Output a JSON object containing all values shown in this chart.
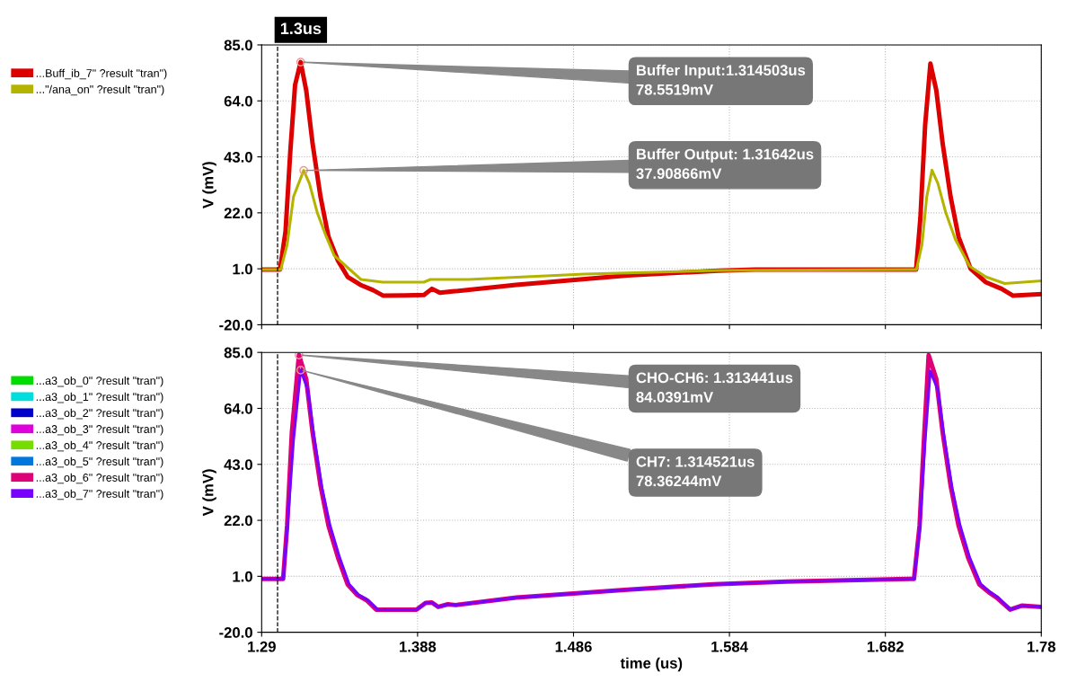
{
  "chart_data": [
    {
      "type": "line",
      "ylabel": "V (mV)",
      "xlim": [
        1.29,
        1.78
      ],
      "ylim": [
        -20.0,
        85.0
      ],
      "xticks": [
        1.29,
        1.388,
        1.486,
        1.584,
        1.682,
        1.78
      ],
      "yticks": [
        {
          "value": -20,
          "label": "-20.0"
        },
        {
          "value": 1,
          "label": "1.0"
        },
        {
          "value": 22,
          "label": "22.0"
        },
        {
          "value": 43,
          "label": "43.0"
        },
        {
          "value": 64,
          "label": "64.0"
        },
        {
          "value": 85,
          "label": "85.0"
        }
      ],
      "tick_labels": "y",
      "grid": true,
      "legend": "left",
      "marker": "none",
      "line_style": "solid",
      "ref_lines": [
        {
          "axis": "x",
          "value": 1.3,
          "label": "1.3us",
          "color": "#000000",
          "line_style": "dashed"
        }
      ],
      "annotations": [
        {
          "text": "Buffer Input:1.314503us\n78.5519mV",
          "x": 1.314503,
          "y": 78.5519
        },
        {
          "text": "Buffer Output: 1.31642us\n37.90866mV",
          "x": 1.31642,
          "y": 37.90866
        }
      ],
      "series": [
        {
          "name": "...Buff_ib_7\" ?result \"tran\")",
          "color": "#dd0000",
          "x": [
            1.29,
            1.3015,
            1.305,
            1.308,
            1.311,
            1.314503,
            1.318,
            1.322,
            1.327,
            1.332,
            1.338,
            1.344,
            1.352,
            1.36,
            1.3665,
            1.38,
            1.392,
            1.397,
            1.402,
            1.41,
            1.45,
            1.52,
            1.577,
            1.6,
            1.698,
            1.7013,
            1.704,
            1.707,
            1.7103,
            1.714,
            1.718,
            1.723,
            1.728,
            1.7356,
            1.745,
            1.755,
            1.7623,
            1.78
          ],
          "values": [
            0.7,
            0.7,
            15,
            45,
            70,
            78.5519,
            68,
            48,
            28,
            13,
            4,
            -2,
            -5,
            -7,
            -9.1,
            -9,
            -8.8,
            -6.5,
            -8,
            -7.5,
            -5,
            -1.5,
            0.3,
            0.7,
            0.7,
            0.7,
            20,
            55,
            78,
            68,
            48,
            28,
            13,
            1,
            -4,
            -6.5,
            -9.1,
            -8.5
          ]
        },
        {
          "name": "...\"/ana_on\" ?result \"tran\")",
          "color": "#b4b400",
          "x": [
            1.29,
            1.302,
            1.306,
            1.31,
            1.31642,
            1.32,
            1.325,
            1.33,
            1.3356,
            1.3524,
            1.366,
            1.392,
            1.396,
            1.42,
            1.493,
            1.577,
            1.698,
            1.7015,
            1.705,
            1.708,
            1.7113,
            1.715,
            1.72,
            1.726,
            1.735,
            1.745,
            1.757,
            1.78
          ],
          "values": [
            0.7,
            0.7,
            10,
            28,
            37.90866,
            33,
            22,
            14,
            6,
            -3,
            -4,
            -4,
            -3,
            -3,
            -1,
            0.4,
            0.7,
            0.7,
            10,
            28,
            38,
            33,
            22,
            12,
            2,
            -2,
            -4.5,
            -3.5
          ]
        }
      ]
    },
    {
      "type": "line",
      "xlabel": "time (us)",
      "ylabel": "V (mV)",
      "xlim": [
        1.29,
        1.78
      ],
      "ylim": [
        -20.0,
        85.0
      ],
      "xticks": [
        1.29,
        1.388,
        1.486,
        1.584,
        1.682,
        1.78
      ],
      "yticks": [
        {
          "value": -20,
          "label": "-20.0"
        },
        {
          "value": 1,
          "label": "1.0"
        },
        {
          "value": 22,
          "label": "22.0"
        },
        {
          "value": 43,
          "label": "43.0"
        },
        {
          "value": 64,
          "label": "64.0"
        },
        {
          "value": 85,
          "label": "85.0"
        }
      ],
      "grid": true,
      "legend": "left",
      "marker": "none",
      "line_style": "solid",
      "ref_lines": [
        {
          "axis": "x",
          "value": 1.3,
          "color": "#000000",
          "line_style": "dashed"
        }
      ],
      "annotations": [
        {
          "text": "CHO-CH6: 1.313441us\n84.0391mV",
          "x": 1.313441,
          "y": 84.0391
        },
        {
          "text": "CH7: 1.314521us\n78.36244mV",
          "x": 1.314521,
          "y": 78.36244
        }
      ],
      "series": [
        {
          "name": "...a3_ob_0\" ?result \"tran\")",
          "color": "#00dd00"
        },
        {
          "name": "...a3_ob_1\" ?result \"tran\")",
          "color": "#00dddd"
        },
        {
          "name": "...a3_ob_2\" ?result \"tran\")",
          "color": "#0000cc"
        },
        {
          "name": "...a3_ob_3\" ?result \"tran\")",
          "color": "#dd00dd"
        },
        {
          "name": "...a3_ob_4\" ?result \"tran\")",
          "color": "#77dd00"
        },
        {
          "name": "...a3_ob_5\" ?result \"tran\")",
          "color": "#0077dd"
        },
        {
          "name": "...a3_ob_6\" ?result \"tran\")",
          "color": "#dd0077",
          "x": [
            1.29,
            1.3035,
            1.306,
            1.309,
            1.313441,
            1.318,
            1.322,
            1.327,
            1.332,
            1.338,
            1.344,
            1.35,
            1.356,
            1.362,
            1.3873,
            1.393,
            1.397,
            1.401,
            1.407,
            1.412,
            1.45,
            1.52,
            1.574,
            1.62,
            1.697,
            1.7,
            1.7035,
            1.7065,
            1.7092,
            1.714,
            1.718,
            1.723,
            1.728,
            1.734,
            1.741,
            1.747,
            1.752,
            1.7604,
            1.768,
            1.78
          ],
          "values": [
            0,
            0,
            20,
            55,
            84.0391,
            75,
            55,
            35,
            20,
            8,
            -2,
            -6,
            -8,
            -11.5,
            -11.5,
            -9,
            -8.8,
            -10.5,
            -9.5,
            -9.8,
            -7,
            -4,
            -2,
            -1,
            0,
            0,
            20,
            55,
            84,
            75,
            55,
            35,
            20,
            8,
            -2,
            -5,
            -7,
            -11.5,
            -10,
            -10.5
          ]
        },
        {
          "name": "...a3_ob_7\" ?result \"tran\")",
          "color": "#7700ff",
          "x": [
            1.29,
            1.3035,
            1.306,
            1.31,
            1.314521,
            1.319,
            1.323,
            1.328,
            1.333,
            1.339,
            1.345,
            1.351,
            1.357,
            1.363,
            1.3873,
            1.393,
            1.397,
            1.401,
            1.407,
            1.412,
            1.45,
            1.52,
            1.574,
            1.62,
            1.697,
            1.7,
            1.7035,
            1.707,
            1.7102,
            1.715,
            1.719,
            1.724,
            1.729,
            1.735,
            1.742,
            1.748,
            1.753,
            1.7604,
            1.768,
            1.78
          ],
          "values": [
            0,
            0,
            18,
            52,
            78.36244,
            71,
            53,
            34,
            20,
            8,
            -2,
            -6,
            -8,
            -11.5,
            -11.5,
            -9,
            -8.8,
            -10.5,
            -9.5,
            -9.8,
            -7,
            -4,
            -2,
            -1,
            0,
            0,
            18,
            52,
            78,
            71,
            53,
            34,
            20,
            8,
            -2,
            -5,
            -7,
            -11.5,
            -10,
            -10.5
          ]
        }
      ]
    }
  ]
}
